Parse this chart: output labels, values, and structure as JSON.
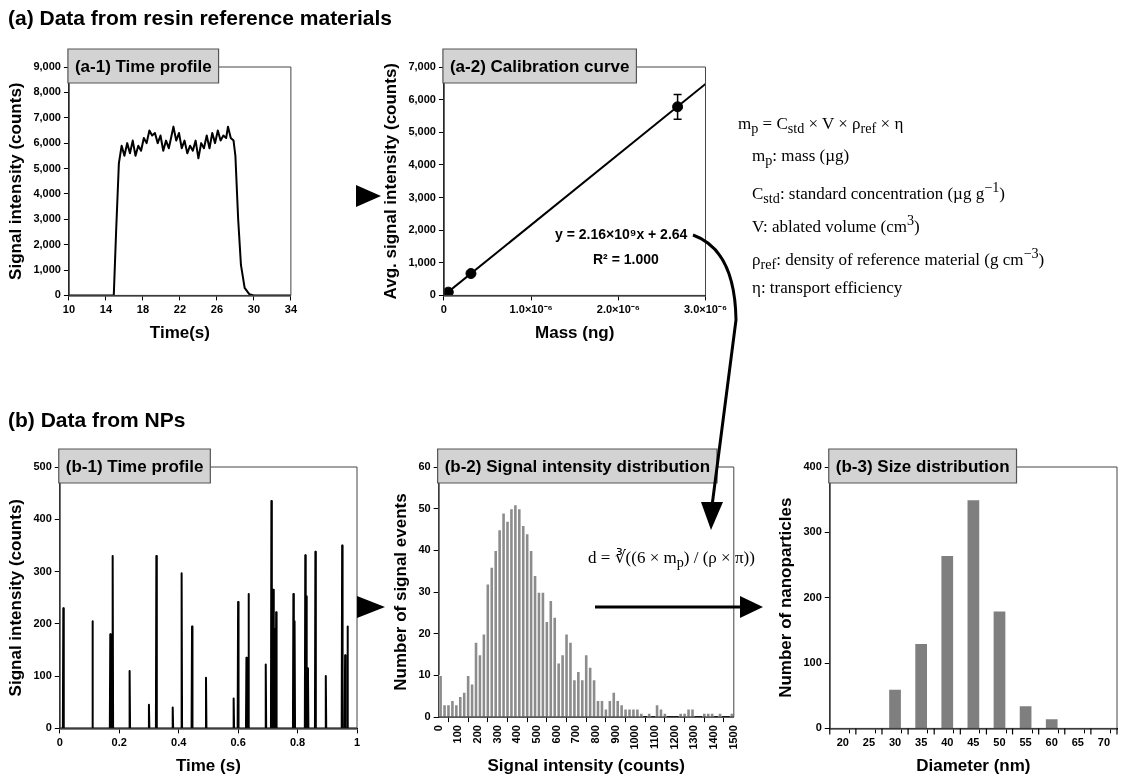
{
  "chart_data": [
    {
      "type": "line",
      "title": "(a-1) Time profile",
      "xlabel": "Time(s)",
      "ylabel": "Signal intensity (counts)",
      "annotations": [
        "(a) Data from resin reference materials"
      ],
      "color": "#000000",
      "marker": "none",
      "line_style": "solid",
      "grid": false,
      "legend": false,
      "x": [
        10,
        14.85,
        15.1,
        15.4,
        15.7,
        16.0,
        16.3,
        16.6,
        16.9,
        17.2,
        17.5,
        17.8,
        18.1,
        18.4,
        18.7,
        19.0,
        19.3,
        19.6,
        19.9,
        20.2,
        20.5,
        20.8,
        21.1,
        21.3,
        21.6,
        21.9,
        22.2,
        22.5,
        22.8,
        23.1,
        23.4,
        23.7,
        24.0,
        24.3,
        24.6,
        24.9,
        25.2,
        25.5,
        25.8,
        26.1,
        26.4,
        26.7,
        27.0,
        27.2,
        27.5,
        27.8,
        28.0,
        28.3,
        28.6,
        29.0,
        29.5,
        30.0,
        34
      ],
      "values": [
        0,
        0,
        2500,
        5200,
        5900,
        5500,
        6000,
        5600,
        6100,
        5500,
        5900,
        5700,
        6200,
        6000,
        6500,
        6300,
        6400,
        6000,
        6300,
        5700,
        6100,
        5800,
        6300,
        6650,
        6100,
        6400,
        5800,
        6100,
        5600,
        5900,
        5700,
        6100,
        5400,
        6000,
        5800,
        6300,
        5800,
        6400,
        6000,
        6500,
        6100,
        6300,
        6200,
        6650,
        6200,
        6100,
        5500,
        3000,
        1200,
        300,
        50,
        0,
        0
      ],
      "xlim": [
        10,
        34
      ],
      "xticks": [
        10,
        14,
        18,
        22,
        26,
        30,
        34
      ],
      "ylim": [
        0,
        9000
      ],
      "yticks": [
        0,
        {
          "value": 1000,
          "label": "1,000"
        },
        {
          "value": 2000,
          "label": "2,000"
        },
        {
          "value": 3000,
          "label": "3,000"
        },
        {
          "value": 4000,
          "label": "4,000"
        },
        {
          "value": 5000,
          "label": "5,000"
        },
        {
          "value": 6000,
          "label": "6,000"
        },
        {
          "value": 7000,
          "label": "7,000"
        },
        {
          "value": 8000,
          "label": "8,000"
        },
        {
          "value": 9000,
          "label": "9,000"
        }
      ]
    },
    {
      "type": "scatter",
      "title": "(a-2) Calibration curve",
      "xlabel": "Mass (ng)",
      "ylabel": "Avg. signal intensity (counts)",
      "marker": "circle",
      "grid": false,
      "legend": false,
      "annotations": [
        "y = 2.16×10⁹x + 2.64",
        "R² = 1.000",
        "m$_{p}$ = C$_{std}$ × V × ρ$_{ref}$ × η",
        "m$_{p}$: mass (µg)",
        "C$_{std}$: standard concentration (µg g$^{−1}$)",
        "V: ablated volume (cm$^{3}$)",
        "ρ$_{ref}$: density of reference material (g cm$^{−3}$)",
        "η: transport efficiency"
      ],
      "series": [
        {
          "color": "#000000",
          "x": [
            5e-08,
            3.1e-07,
            2.68e-06
          ],
          "values": [
            100,
            670,
            5780
          ],
          "errors": [
            null,
            null,
            380
          ]
        },
        {
          "type": "line",
          "color": "#000000",
          "marker": "none",
          "x": [
            0,
            3e-06
          ],
          "values": [
            0,
            6480
          ]
        }
      ],
      "xlim": [
        0,
        3e-06
      ],
      "xticks": [
        0,
        {
          "value": 1e-06,
          "label": "1.0×10⁻⁶"
        },
        {
          "value": 2e-06,
          "label": "2.0×10⁻⁶"
        },
        {
          "value": 3e-06,
          "label": "3.0×10⁻⁶"
        }
      ],
      "ylim": [
        0,
        7000
      ],
      "yticks": [
        0,
        {
          "value": 1000,
          "label": "1,000"
        },
        {
          "value": 2000,
          "label": "2,000"
        },
        {
          "value": 3000,
          "label": "3,000"
        },
        {
          "value": 4000,
          "label": "4,000"
        },
        {
          "value": 5000,
          "label": "5,000"
        },
        {
          "value": 6000,
          "label": "6,000"
        },
        {
          "value": 7000,
          "label": "7,000"
        }
      ]
    },
    {
      "type": "line",
      "title": "(b-1) Time profile",
      "xlabel": "Time (s)",
      "ylabel": "Signal intensity (counts)",
      "annotations": [
        "(b) Data from NPs"
      ],
      "color": "#000000",
      "marker": "none",
      "line_style": "solid",
      "grid": false,
      "legend": false,
      "x": [
        0,
        0.0105,
        0.012,
        0.0135,
        0.1085,
        0.11,
        0.1115,
        0.1685,
        0.17,
        0.1715,
        0.1765,
        0.178,
        0.1795,
        0.2335,
        0.235,
        0.2365,
        0.2985,
        0.3,
        0.3015,
        0.3235,
        0.325,
        0.3265,
        0.3785,
        0.38,
        0.3815,
        0.4085,
        0.41,
        0.4115,
        0.4435,
        0.445,
        0.4465,
        0.4905,
        0.492,
        0.4935,
        0.5835,
        0.585,
        0.5865,
        0.5985,
        0.6,
        0.6015,
        0.6265,
        0.628,
        0.6295,
        0.6335,
        0.635,
        0.6365,
        0.6915,
        0.693,
        0.6945,
        0.7105,
        0.712,
        0.7135,
        0.7165,
        0.718,
        0.7195,
        0.7205,
        0.722,
        0.7235,
        0.7265,
        0.728,
        0.7295,
        0.7845,
        0.786,
        0.7875,
        0.7885,
        0.79,
        0.7915,
        0.8245,
        0.826,
        0.8275,
        0.8285,
        0.83,
        0.8315,
        0.8335,
        0.835,
        0.8365,
        0.8585,
        0.86,
        0.8615,
        0.8935,
        0.895,
        0.8965,
        0.9485,
        0.95,
        0.9515,
        0.9585,
        0.96,
        0.9615,
        0.9665,
        0.968,
        0.9695,
        1
      ],
      "values": [
        0,
        0,
        230,
        0,
        0,
        205,
        0,
        0,
        180,
        0,
        0,
        330,
        0,
        0,
        110,
        0,
        0,
        45,
        0,
        0,
        330,
        0,
        0,
        40,
        0,
        0,
        297,
        0,
        0,
        195,
        0,
        0,
        97,
        0,
        0,
        57,
        0,
        0,
        242,
        0,
        0,
        135,
        0,
        0,
        257,
        0,
        0,
        122,
        0,
        0,
        435,
        0,
        0,
        265,
        0,
        0,
        190,
        0,
        0,
        222,
        0,
        0,
        257,
        0,
        0,
        205,
        0,
        0,
        331,
        0,
        0,
        253,
        0,
        0,
        115,
        0,
        0,
        338,
        0,
        0,
        100,
        0,
        0,
        350,
        0,
        0,
        140,
        0,
        0,
        195,
        0,
        0
      ],
      "xlim": [
        0,
        1
      ],
      "xticks": [
        0,
        0.2,
        0.4,
        0.6,
        0.8,
        1
      ],
      "ylim": [
        0,
        500
      ],
      "yticks": [
        0,
        100,
        200,
        300,
        400,
        500
      ]
    },
    {
      "type": "histogram",
      "title": "(b-2) Signal intensity distribution",
      "xlabel": "Signal intensity (counts)",
      "ylabel": "Number of signal events",
      "annotations": [
        "d = ∛((6 × m$_{p}$) / (ρ × π))"
      ],
      "color": "#8c8c8c",
      "grid": false,
      "legend": false,
      "bins": [
        0,
        20,
        40,
        60,
        80,
        100,
        120,
        140,
        160,
        180,
        200,
        220,
        240,
        260,
        280,
        300,
        320,
        340,
        360,
        380,
        400,
        420,
        440,
        460,
        480,
        500,
        520,
        540,
        560,
        580,
        600,
        620,
        640,
        660,
        680,
        700,
        720,
        740,
        760,
        780,
        800,
        820,
        840,
        860,
        880,
        900,
        920,
        940,
        960,
        980,
        1000,
        1020,
        1040,
        1060,
        1080,
        1100,
        1120,
        1140,
        1160,
        1180,
        1200,
        1220,
        1240,
        1260,
        1280,
        1300,
        1320,
        1340,
        1360,
        1380,
        1400,
        1420,
        1440,
        1460,
        1480,
        1500
      ],
      "values": [
        10,
        3,
        3,
        4,
        3,
        5,
        6,
        10,
        8,
        18,
        15,
        20,
        32,
        36,
        40,
        45,
        49,
        47,
        50,
        51,
        50,
        46,
        44,
        40,
        34,
        30,
        30,
        23,
        28,
        24,
        13,
        15,
        20,
        18,
        9,
        11,
        9,
        15,
        12,
        9,
        4,
        4,
        2,
        4,
        6,
        4,
        3,
        2,
        2,
        2,
        2,
        1,
        0,
        1,
        0,
        3,
        2,
        1,
        0,
        0,
        0,
        1,
        1,
        2,
        2,
        0,
        0,
        1,
        1,
        1,
        0,
        1,
        0,
        0,
        1
      ],
      "xlim": [
        0,
        1500
      ],
      "xticks": [
        0,
        100,
        200,
        300,
        400,
        500,
        600,
        700,
        800,
        900,
        1000,
        1100,
        1200,
        1300,
        1400,
        1500
      ],
      "ylim": [
        0,
        60
      ],
      "yticks": [
        0,
        10,
        20,
        30,
        40,
        50,
        60
      ]
    },
    {
      "type": "histogram",
      "title": "(b-3) Size distribution",
      "xlabel": "Diameter (nm)",
      "ylabel": "Number of nanoparticles",
      "color": "#7f7f7f",
      "grid": false,
      "legend": false,
      "bins": [
        17.5,
        22.5,
        27.5,
        32.5,
        37.5,
        42.5,
        47.5,
        52.5,
        57.5,
        62.5,
        67.5,
        72.5
      ],
      "values": [
        0,
        0,
        60,
        130,
        265,
        350,
        180,
        35,
        15,
        0,
        0
      ],
      "xlim": [
        17.5,
        72.5
      ],
      "xticks": [
        {
          "value": 17.5,
          "label": null
        },
        20,
        {
          "value": 22.5,
          "label": null
        },
        25,
        {
          "value": 27.5,
          "label": null
        },
        30,
        {
          "value": 32.5,
          "label": null
        },
        35,
        {
          "value": 37.5,
          "label": null
        },
        40,
        {
          "value": 42.5,
          "label": null
        },
        45,
        {
          "value": 47.5,
          "label": null
        },
        50,
        {
          "value": 52.5,
          "label": null
        },
        55,
        {
          "value": 57.5,
          "label": null
        },
        60,
        {
          "value": 62.5,
          "label": null
        },
        65,
        {
          "value": 67.5,
          "label": null
        },
        70,
        {
          "value": 72.5,
          "label": null
        }
      ],
      "ylim": [
        0,
        400
      ],
      "yticks": [
        0,
        100,
        200,
        300,
        400
      ]
    }
  ]
}
